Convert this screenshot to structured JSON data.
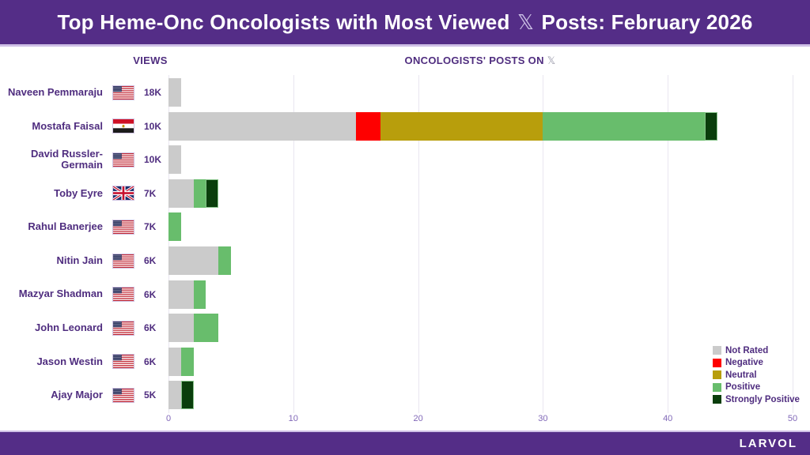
{
  "header": {
    "title_pre": "Top Heme-Onc Oncologists with Most Viewed ",
    "x_glyph": "𝕏",
    "title_post": " Posts: February 2026"
  },
  "columns": {
    "views_label": "VIEWS",
    "posts_label": "ONCOLOGISTS' POSTS ON ",
    "x_glyph": "𝕏"
  },
  "chart_data": {
    "type": "bar",
    "orientation": "horizontal",
    "stacked": true,
    "title": "ONCOLOGISTS' POSTS ON 𝕏",
    "xlabel": "",
    "ylabel": "",
    "xlim": [
      0,
      50
    ],
    "xticks": [
      0,
      10,
      20,
      30,
      40,
      50
    ],
    "grid": "vertical",
    "legend_position": "bottom-right",
    "categories": [
      "Naveen Pemmaraju",
      "Mostafa Faisal",
      "David Russler-Germain",
      "Toby Eyre",
      "Rahul Banerjee",
      "Nitin Jain",
      "Mazyar Shadman",
      "John Leonard",
      "Jason Westin",
      "Ajay Major"
    ],
    "flags": [
      "us",
      "eg",
      "us",
      "gb",
      "us",
      "us",
      "us",
      "us",
      "us",
      "us"
    ],
    "views": [
      "18K",
      "10K",
      "10K",
      "7K",
      "7K",
      "6K",
      "6K",
      "6K",
      "6K",
      "5K"
    ],
    "series": [
      {
        "name": "Not Rated",
        "color": "#CBCBCB",
        "values": [
          1,
          15,
          1,
          2,
          0,
          4,
          2,
          2,
          1,
          1
        ]
      },
      {
        "name": "Negative",
        "color": "#FE0000",
        "values": [
          0,
          2,
          0,
          0,
          0,
          0,
          0,
          0,
          0,
          0
        ]
      },
      {
        "name": "Neutral",
        "color": "#B89E0C",
        "values": [
          0,
          13,
          0,
          0,
          0,
          0,
          0,
          0,
          0,
          0
        ]
      },
      {
        "name": "Positive",
        "color": "#68BD6C",
        "values": [
          0,
          13,
          0,
          1,
          1,
          1,
          1,
          2,
          1,
          0
        ]
      },
      {
        "name": "Strongly Positive",
        "color": "#0A3E0C",
        "values": [
          0,
          1,
          0,
          1,
          0,
          0,
          0,
          0,
          0,
          1
        ]
      }
    ],
    "totals": [
      1,
      44,
      1,
      4,
      1,
      5,
      3,
      4,
      2,
      2
    ]
  },
  "footer": {
    "brand": "LARVOL"
  }
}
